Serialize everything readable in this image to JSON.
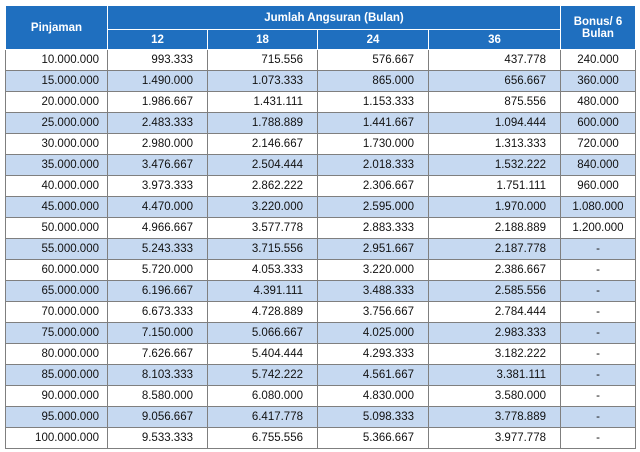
{
  "table": {
    "header": {
      "loan": "Pinjaman",
      "group": "Jumlah Angsuran (Bulan)",
      "terms": [
        "12",
        "18",
        "24",
        "36"
      ],
      "bonus": "Bonus/ 6 Bulan"
    },
    "rows": [
      [
        "10.000.000",
        "993.333",
        "715.556",
        "576.667",
        "437.778",
        "240.000"
      ],
      [
        "15.000.000",
        "1.490.000",
        "1.073.333",
        "865.000",
        "656.667",
        "360.000"
      ],
      [
        "20.000.000",
        "1.986.667",
        "1.431.111",
        "1.153.333",
        "875.556",
        "480.000"
      ],
      [
        "25.000.000",
        "2.483.333",
        "1.788.889",
        "1.441.667",
        "1.094.444",
        "600.000"
      ],
      [
        "30.000.000",
        "2.980.000",
        "2.146.667",
        "1.730.000",
        "1.313.333",
        "720.000"
      ],
      [
        "35.000.000",
        "3.476.667",
        "2.504.444",
        "2.018.333",
        "1.532.222",
        "840.000"
      ],
      [
        "40.000.000",
        "3.973.333",
        "2.862.222",
        "2.306.667",
        "1.751.111",
        "960.000"
      ],
      [
        "45.000.000",
        "4.470.000",
        "3.220.000",
        "2.595.000",
        "1.970.000",
        "1.080.000"
      ],
      [
        "50.000.000",
        "4.966.667",
        "3.577.778",
        "2.883.333",
        "2.188.889",
        "1.200.000"
      ],
      [
        "55.000.000",
        "5.243.333",
        "3.715.556",
        "2.951.667",
        "2.187.778",
        "-"
      ],
      [
        "60.000.000",
        "5.720.000",
        "4.053.333",
        "3.220.000",
        "2.386.667",
        "-"
      ],
      [
        "65.000.000",
        "6.196.667",
        "4.391.111",
        "3.488.333",
        "2.585.556",
        "-"
      ],
      [
        "70.000.000",
        "6.673.333",
        "4.728.889",
        "3.756.667",
        "2.784.444",
        "-"
      ],
      [
        "75.000.000",
        "7.150.000",
        "5.066.667",
        "4.025.000",
        "2.983.333",
        "-"
      ],
      [
        "80.000.000",
        "7.626.667",
        "5.404.444",
        "4.293.333",
        "3.182.222",
        "-"
      ],
      [
        "85.000.000",
        "8.103.333",
        "5.742.222",
        "4.561.667",
        "3.381.111",
        "-"
      ],
      [
        "90.000.000",
        "8.580.000",
        "6.080.000",
        "4.830.000",
        "3.580.000",
        "-"
      ],
      [
        "95.000.000",
        "9.056.667",
        "6.417.778",
        "5.098.333",
        "3.778.889",
        "-"
      ],
      [
        "100.000.000",
        "9.533.333",
        "6.755.556",
        "5.366.667",
        "3.977.778",
        "-"
      ]
    ]
  }
}
